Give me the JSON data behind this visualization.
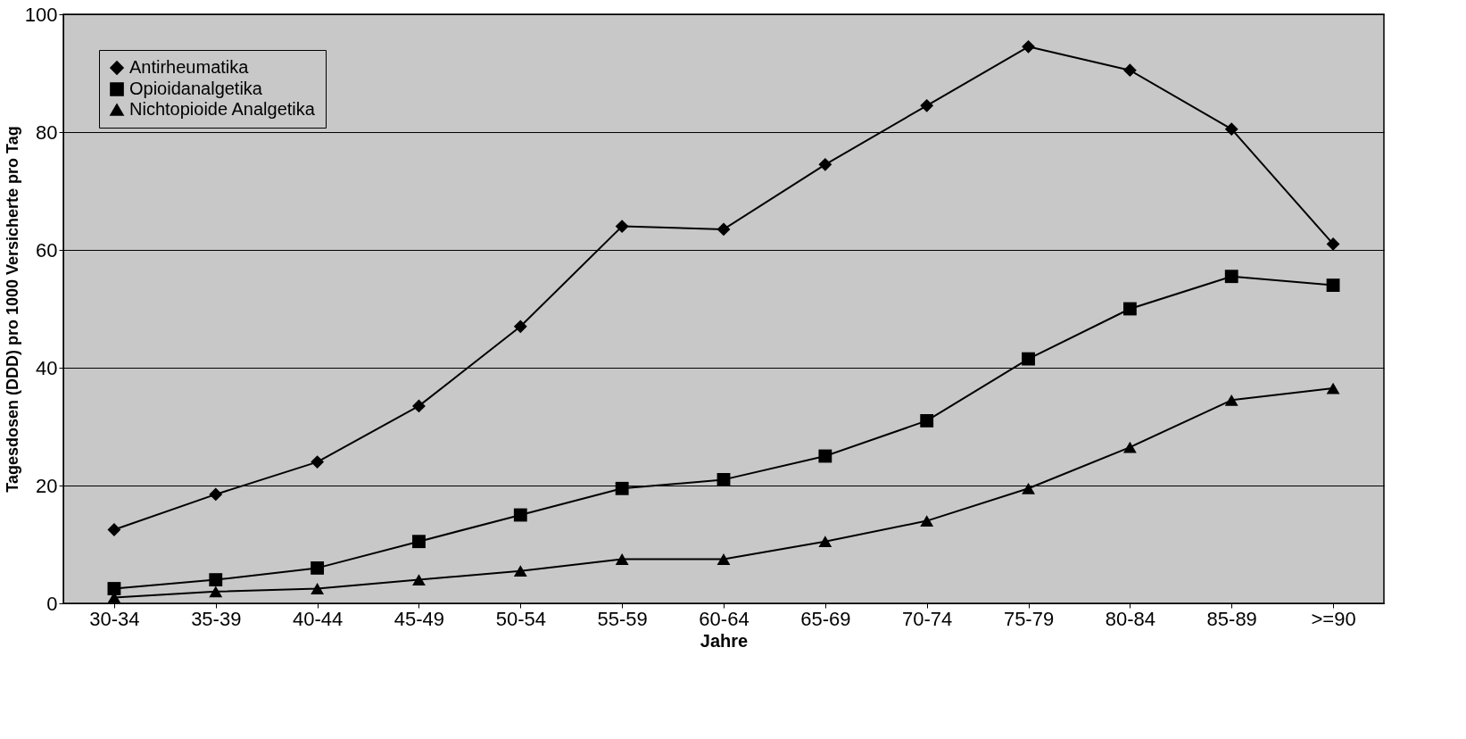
{
  "chart_data": {
    "type": "line",
    "xlabel": "Jahre",
    "ylabel": "Tagesdosen (DDD) pro 1000 Versicherte pro Tag",
    "categories": [
      "30-34",
      "35-39",
      "40-44",
      "45-49",
      "50-54",
      "55-59",
      "60-64",
      "65-69",
      "70-74",
      "75-79",
      "80-84",
      "85-89",
      ">=90"
    ],
    "series": [
      {
        "name": "Antirheumatika",
        "color": "#000000",
        "marker": "diamond",
        "values": [
          12.5,
          18.5,
          24,
          33.5,
          47,
          64,
          63.5,
          74.5,
          84.5,
          94.5,
          90.5,
          80.5,
          61
        ]
      },
      {
        "name": "Opioidanalgetika",
        "color": "#000000",
        "marker": "square",
        "values": [
          2.5,
          4,
          6,
          10.5,
          15,
          19.5,
          21,
          25,
          31,
          41.5,
          50,
          55.5,
          54
        ]
      },
      {
        "name": "Nichtopioide Analgetika",
        "color": "#000000",
        "marker": "triangle",
        "values": [
          1,
          2,
          2.5,
          4,
          5.5,
          7.5,
          7.5,
          10.5,
          14,
          19.5,
          26.5,
          34.5,
          36.5
        ]
      }
    ],
    "ylim": [
      0,
      100
    ],
    "yticks": [
      0,
      20,
      40,
      60,
      80,
      100
    ],
    "grid": "y",
    "legend": "top left",
    "line_style": "solid"
  }
}
